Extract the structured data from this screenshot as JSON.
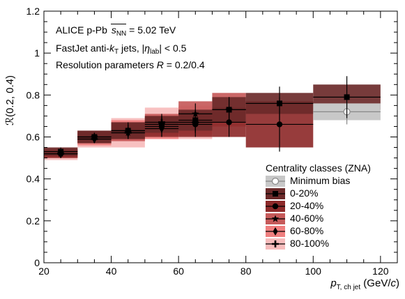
{
  "chart_data": {
    "type": "scatter",
    "title": "",
    "xlim": [
      20,
      125
    ],
    "ylim": [
      0,
      1.2
    ],
    "x_ticks": [
      20,
      40,
      60,
      80,
      100,
      120
    ],
    "y_ticks": [
      "0",
      "0.2",
      "0.4",
      "0.6",
      "0.8",
      "1",
      "1.2"
    ],
    "bins": [
      [
        20,
        30
      ],
      [
        30,
        40
      ],
      [
        40,
        50
      ],
      [
        50,
        60
      ],
      [
        60,
        70
      ],
      [
        70,
        80
      ],
      [
        80,
        100
      ],
      [
        100,
        120
      ]
    ],
    "series": [
      {
        "name": "Minimum bias",
        "marker": "open-circle",
        "color": "#888888",
        "box": "#c8c8c8",
        "x": [
          110
        ],
        "y": [
          0.72
        ],
        "bin": [
          [
            100,
            120
          ]
        ],
        "yerr": [
          0.06
        ],
        "syst": [
          0.04
        ]
      },
      {
        "name": "0-20%",
        "marker": "square",
        "color": "#000000",
        "box": "#6b2a2a",
        "x": [
          25,
          35,
          45,
          55,
          65,
          75,
          90,
          110
        ],
        "y": [
          0.53,
          0.6,
          0.63,
          0.66,
          0.68,
          0.73,
          0.76,
          0.79
        ],
        "yerr": [
          0.02,
          0.02,
          0.03,
          0.04,
          0.05,
          0.06,
          0.08,
          0.1
        ],
        "syst": [
          0.02,
          0.03,
          0.04,
          0.04,
          0.05,
          0.06,
          0.05,
          0.06
        ]
      },
      {
        "name": "20-40%",
        "marker": "circle",
        "color": "#000000",
        "box": "#8e2b2b",
        "x": [
          25,
          35,
          45,
          55,
          65,
          75,
          90
        ],
        "y": [
          0.52,
          0.6,
          0.63,
          0.65,
          0.66,
          0.67,
          0.66
        ],
        "yerr": [
          0.02,
          0.02,
          0.04,
          0.05,
          0.06,
          0.07,
          0.13
        ],
        "syst": [
          0.02,
          0.03,
          0.04,
          0.05,
          0.06,
          0.07,
          0.11
        ]
      },
      {
        "name": "40-60%",
        "marker": "star",
        "color": "#000000",
        "box": "#c65a5a",
        "x": [
          25,
          35,
          45,
          55,
          65,
          75
        ],
        "y": [
          0.52,
          0.6,
          0.62,
          0.66,
          0.71,
          0.73
        ],
        "yerr": [
          0.02,
          0.02,
          0.03,
          0.04,
          0.05,
          0.06
        ],
        "syst": [
          0.02,
          0.03,
          0.04,
          0.05,
          0.06,
          0.08
        ]
      },
      {
        "name": "60-80%",
        "marker": "diamond",
        "color": "#000000",
        "box": "#ef7f7f",
        "x": [
          25,
          35,
          45,
          55,
          65
        ],
        "y": [
          0.52,
          0.59,
          0.63,
          0.64,
          0.67
        ],
        "yerr": [
          0.02,
          0.02,
          0.03,
          0.04,
          0.05
        ],
        "syst": [
          0.02,
          0.03,
          0.05,
          0.05,
          0.06
        ]
      },
      {
        "name": "80-100%",
        "marker": "cross",
        "color": "#000000",
        "box": "#f7bcbc",
        "x": [
          25,
          35,
          45,
          55,
          65
        ],
        "y": [
          0.52,
          0.59,
          0.62,
          0.67,
          0.67
        ],
        "yerr": [
          0.02,
          0.02,
          0.03,
          0.04,
          0.05
        ],
        "syst": [
          0.03,
          0.04,
          0.07,
          0.07,
          0.08
        ]
      }
    ]
  },
  "annotations": {
    "line1_prefix": "ALICE p-Pb ",
    "line1_sqrt": "s",
    "line1_sub": "NN",
    "line1_suffix": " = 5.02 TeV",
    "line2_prefix": "FastJet anti-",
    "line2_k": "k",
    "line2_ksub": "T",
    "line2_mid": " jets, |",
    "line2_eta": "η",
    "line2_etasub": "lab",
    "line2_suffix": "| < 0.5",
    "line3_prefix": "Resolution parameters ",
    "line3_R": "R",
    "line3_suffix": " = 0.2/0.4"
  },
  "axes": {
    "xlabel_p": "p",
    "xlabel_sub": "T, ch jet",
    "xlabel_unit_pre": " (GeV/",
    "xlabel_unit_c": "c",
    "xlabel_unit_post": ")",
    "ylabel": "ℛ(0.2, 0.4)"
  },
  "legend": {
    "title": "Centrality classes (ZNA)",
    "items": [
      "Minimum bias",
      "0-20%",
      "20-40%",
      "40-60%",
      "60-80%",
      "80-100%"
    ]
  }
}
